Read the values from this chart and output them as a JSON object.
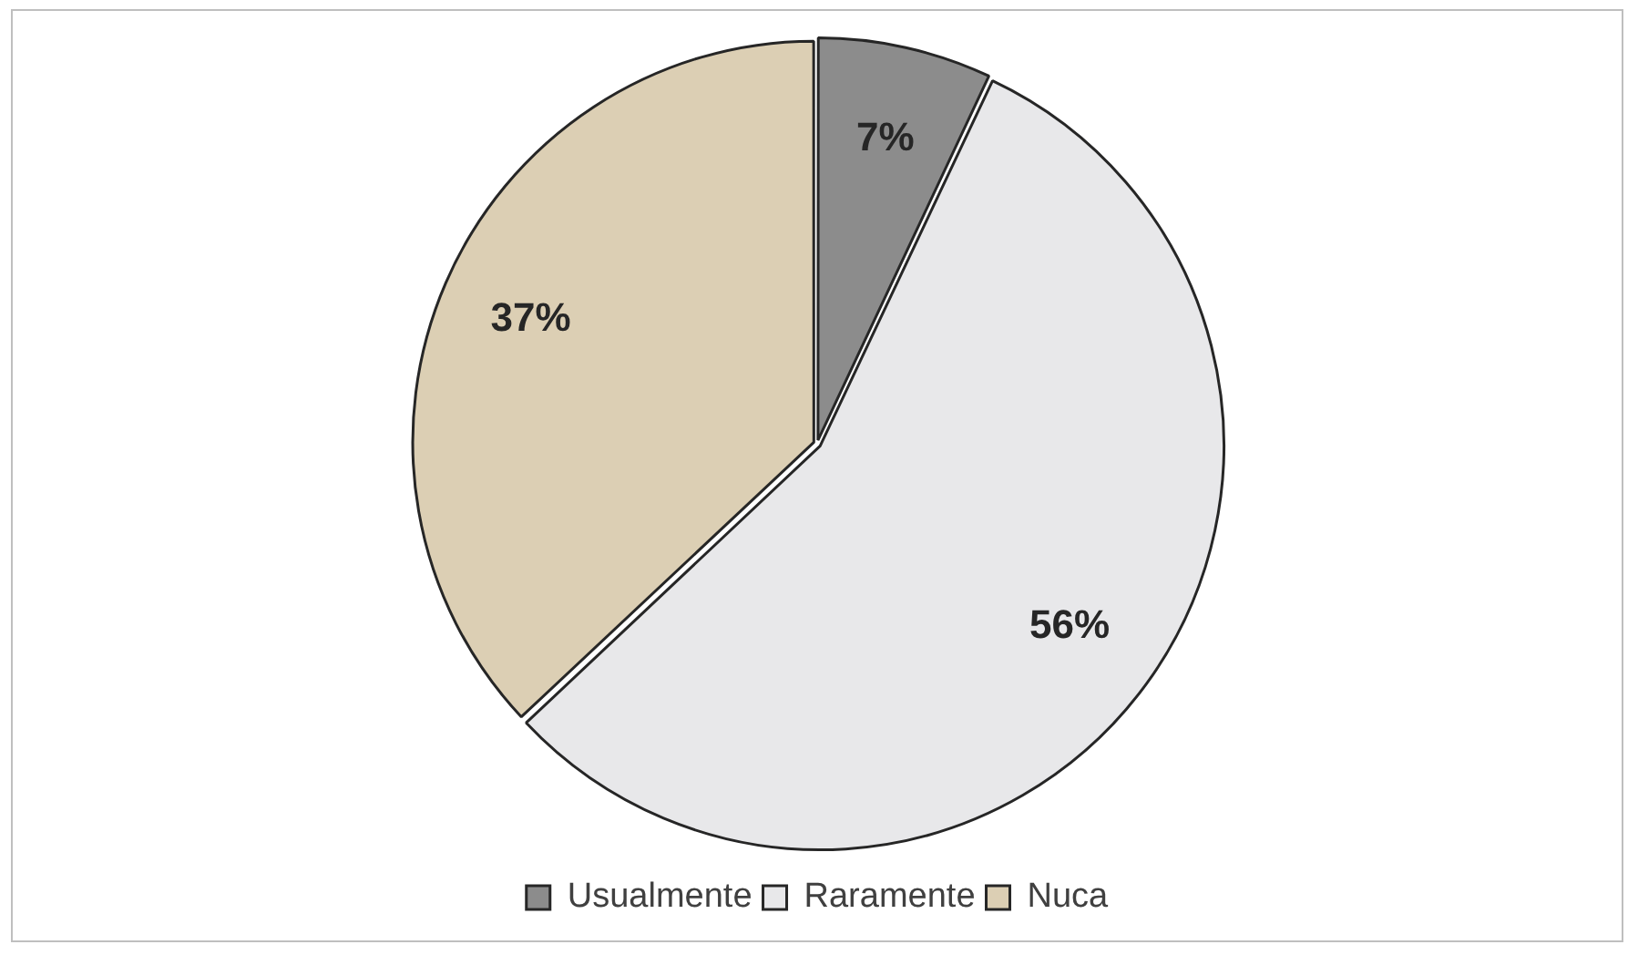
{
  "chart_data": {
    "type": "pie",
    "categories": [
      "Usualmente",
      "Raramente",
      "Nuca"
    ],
    "values": [
      7,
      56,
      37
    ],
    "colors": [
      "#8c8c8c",
      "#e8e8ea",
      "#dccfb4"
    ],
    "value_labels": [
      "7%",
      "56%",
      "37%"
    ],
    "legend": "bottom"
  }
}
